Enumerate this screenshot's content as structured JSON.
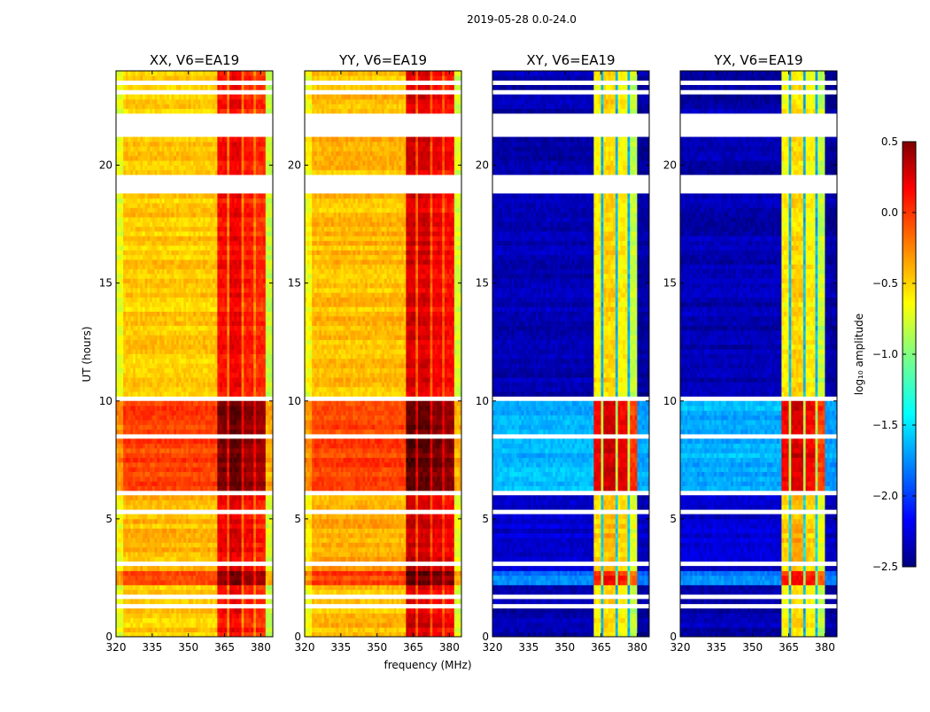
{
  "chart_data": {
    "type": "heatmap",
    "suptitle": "2019-05-28 0.0-24.0",
    "xlabel": "frequency (MHz)",
    "ylabel": "UT (hours)",
    "xlim": [
      320,
      385
    ],
    "ylim": [
      0,
      24
    ],
    "xticks": [
      "320",
      "335",
      "350",
      "365",
      "380"
    ],
    "xtick_values": [
      320,
      335,
      350,
      365,
      380
    ],
    "yticks": [
      "0",
      "5",
      "10",
      "15",
      "20"
    ],
    "ytick_values": [
      0,
      5,
      10,
      15,
      20
    ],
    "colorbar": {
      "label": "log₁₀ amplitude",
      "range": [
        -2.5,
        0.5
      ],
      "ticks": [
        "0.5",
        "0.0",
        "−0.5",
        "−1.0",
        "−1.5",
        "−2.0",
        "−2.5"
      ],
      "tick_values": [
        0.5,
        0.0,
        -0.5,
        -1.0,
        -1.5,
        -2.0,
        -2.5
      ],
      "colormap": "jet"
    },
    "gaps_ut": [
      [
        1.3,
        1.42
      ],
      [
        1.6,
        1.75
      ],
      [
        3.1,
        3.2
      ],
      [
        5.3,
        5.36
      ],
      [
        6.1,
        6.3
      ],
      [
        8.0,
        8.1
      ],
      [
        8.5,
        8.6
      ],
      [
        10.05,
        10.25
      ],
      [
        18.8,
        19.5
      ],
      [
        21.2,
        22.2
      ],
      [
        22.5,
        22.56
      ],
      [
        23.0,
        23.1
      ],
      [
        23.45,
        23.55
      ]
    ],
    "panels": [
      {
        "title": "XX, V6=EA19",
        "freq_profile": [
          [
            320,
            323,
            -0.65
          ],
          [
            323,
            362,
            -0.42
          ],
          [
            362,
            366,
            0.15
          ],
          [
            366,
            367,
            -0.2
          ],
          [
            367,
            372,
            0.22
          ],
          [
            372,
            373,
            -0.2
          ],
          [
            373,
            377,
            0.1
          ],
          [
            377,
            378,
            -0.2
          ],
          [
            378,
            382,
            0.05
          ],
          [
            382,
            385,
            -0.75
          ]
        ],
        "time_offsets": [
          [
            0,
            2.2,
            -0.05
          ],
          [
            2.2,
            2.8,
            0.3
          ],
          [
            2.8,
            6.2,
            0.0
          ],
          [
            6.2,
            10.0,
            0.35
          ],
          [
            10.0,
            24,
            -0.05
          ]
        ]
      },
      {
        "title": "YY, V6=EA19",
        "freq_profile": [
          [
            320,
            323,
            -0.6
          ],
          [
            323,
            362,
            -0.38
          ],
          [
            362,
            366,
            0.3
          ],
          [
            366,
            367,
            -0.1
          ],
          [
            367,
            372,
            0.28
          ],
          [
            372,
            373,
            -0.1
          ],
          [
            373,
            377,
            0.2
          ],
          [
            377,
            378,
            -0.1
          ],
          [
            378,
            382,
            0.15
          ],
          [
            382,
            385,
            -0.7
          ]
        ],
        "time_offsets": [
          [
            0,
            2.2,
            -0.05
          ],
          [
            2.2,
            2.8,
            0.3
          ],
          [
            2.8,
            6.2,
            0.0
          ],
          [
            6.2,
            10.0,
            0.3
          ],
          [
            10.0,
            24,
            -0.05
          ]
        ]
      },
      {
        "title": "XY, V6=EA19",
        "freq_profile": [
          [
            320,
            362,
            -2.35
          ],
          [
            362,
            365.5,
            -0.6
          ],
          [
            365.5,
            366.5,
            -1.6
          ],
          [
            366.5,
            371,
            -0.5
          ],
          [
            371,
            372,
            -1.6
          ],
          [
            372,
            376,
            -0.6
          ],
          [
            376,
            377,
            -1.6
          ],
          [
            377,
            380,
            -0.8
          ],
          [
            380,
            385,
            -2.4
          ]
        ],
        "time_offsets": [
          [
            0,
            2.2,
            0.0
          ],
          [
            2.2,
            2.8,
            0.6
          ],
          [
            2.8,
            6.2,
            0.1
          ],
          [
            6.2,
            10.0,
            0.75
          ],
          [
            10.0,
            24,
            0.0
          ]
        ]
      },
      {
        "title": "YX, V6=EA19",
        "freq_profile": [
          [
            320,
            362,
            -2.35
          ],
          [
            362,
            365.5,
            -0.6
          ],
          [
            365.5,
            366.5,
            -1.6
          ],
          [
            366.5,
            371,
            -0.5
          ],
          [
            371,
            372,
            -1.6
          ],
          [
            372,
            376,
            -0.6
          ],
          [
            376,
            377,
            -1.6
          ],
          [
            377,
            380,
            -0.8
          ],
          [
            380,
            385,
            -2.4
          ]
        ],
        "time_offsets": [
          [
            0,
            2.2,
            0.0
          ],
          [
            2.2,
            2.8,
            0.6
          ],
          [
            2.8,
            6.2,
            0.1
          ],
          [
            6.2,
            10.0,
            0.75
          ],
          [
            10.0,
            24,
            0.0
          ]
        ]
      }
    ]
  }
}
